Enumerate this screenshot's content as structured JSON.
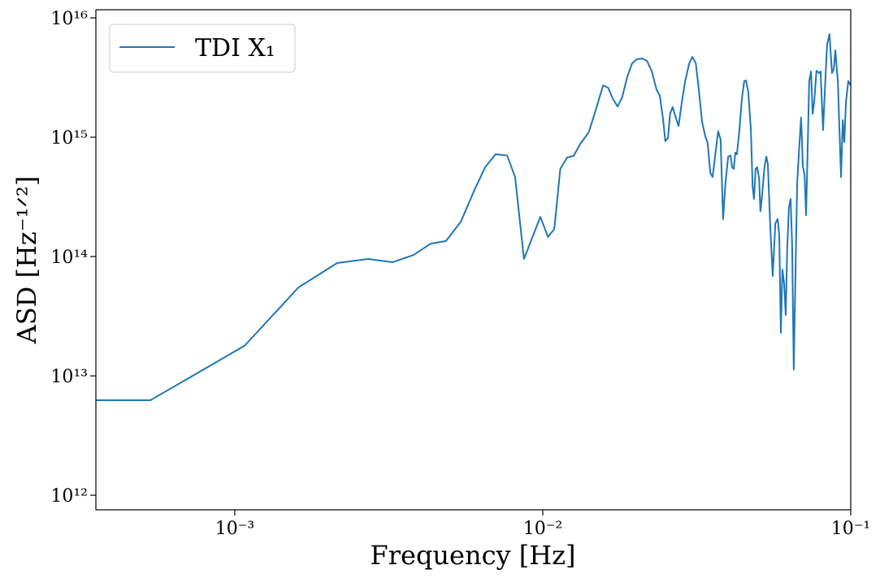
{
  "chart_data": {
    "type": "line",
    "xlabel": "Frequency [Hz]",
    "ylabel": "ASD [Hz⁻¹ᐟ²]",
    "xscale": "log",
    "yscale": "log",
    "legend": "upper left",
    "xlim": [
      0.000354,
      0.1
    ],
    "ylim": [
      755000000000.0,
      1.17e+16
    ],
    "xticks": [
      {
        "value": 0.001,
        "label": "10⁻³"
      },
      {
        "value": 0.01,
        "label": "10⁻²"
      },
      {
        "value": 0.1,
        "label": "10⁻¹"
      }
    ],
    "yticks": [
      {
        "value": 1000000000000.0,
        "label": "10¹²"
      },
      {
        "value": 10000000000000.0,
        "label": "10¹³"
      },
      {
        "value": 100000000000000.0,
        "label": "10¹⁴"
      },
      {
        "value": 1000000000000000.0,
        "label": "10¹⁵"
      },
      {
        "value": 1e+16,
        "label": "10¹⁶"
      }
    ],
    "x": [
      0.000354,
      0.000532,
      0.001076,
      0.00161,
      0.00215,
      0.00271,
      0.00325,
      0.0038,
      0.00432,
      0.00485,
      0.00542,
      0.006,
      0.0065,
      0.00703,
      0.00766,
      0.00813,
      0.00869,
      0.00982,
      0.0104,
      0.0109,
      0.0114,
      0.012,
      0.0126,
      0.0132,
      0.0141,
      0.0149,
      0.0157,
      0.0163,
      0.0169,
      0.0175,
      0.0181,
      0.0188,
      0.0195,
      0.0202,
      0.021,
      0.0218,
      0.0226,
      0.0234,
      0.024,
      0.0246,
      0.025,
      0.0255,
      0.0259,
      0.0264,
      0.0271,
      0.0276,
      0.0283,
      0.029,
      0.0299,
      0.0306,
      0.0314,
      0.0321,
      0.0329,
      0.0337,
      0.0343,
      0.035,
      0.0356,
      0.0362,
      0.0371,
      0.0378,
      0.0385,
      0.0392,
      0.04,
      0.0407,
      0.0412,
      0.0417,
      0.0422,
      0.0427,
      0.0435,
      0.0443,
      0.0451,
      0.0457,
      0.0465,
      0.0474,
      0.048,
      0.0485,
      0.0491,
      0.0497,
      0.0504,
      0.0509,
      0.0515,
      0.0525,
      0.0532,
      0.0538,
      0.0548,
      0.0558,
      0.0569,
      0.0579,
      0.0586,
      0.0593,
      0.06,
      0.0608,
      0.0615,
      0.0622,
      0.063,
      0.0638,
      0.0645,
      0.0653,
      0.0662,
      0.067,
      0.0682,
      0.069,
      0.0699,
      0.0708,
      0.0716,
      0.0725,
      0.0733,
      0.0743,
      0.0752,
      0.0761,
      0.0774,
      0.0789,
      0.0798,
      0.0813,
      0.0828,
      0.0838,
      0.0853,
      0.0869,
      0.0881,
      0.0891,
      0.0908,
      0.093,
      0.0942,
      0.0953,
      0.0965,
      0.0982,
      0.1
    ],
    "series": [
      {
        "name": "TDI X₁",
        "color": "#1f77b4",
        "values": [
          6250000000000.0,
          6250000000000.0,
          17900000000000.0,
          55100000000000.0,
          88300000000000.0,
          95500000000000.0,
          89600000000000.0,
          103000000000000.0,
          128000000000000.0,
          135000000000000.0,
          196000000000000.0,
          361000000000000.0,
          560000000000000.0,
          720000000000000.0,
          704000000000000.0,
          464000000000000.0,
          95500000000000.0,
          215000000000000.0,
          146000000000000.0,
          170000000000000.0,
          543000000000000.0,
          676000000000000.0,
          698000000000000.0,
          869000000000000.0,
          1100000000000000.0,
          1730000000000000.0,
          2720000000000000.0,
          2600000000000000.0,
          2090000000000000.0,
          1810000000000000.0,
          2150000000000000.0,
          3190000000000000.0,
          4160000000000000.0,
          4500000000000000.0,
          4570000000000000.0,
          4360000000000000.0,
          3560000000000000.0,
          2520000000000000.0,
          2220000000000000.0,
          1390000000000000.0,
          925000000000000.0,
          985000000000000.0,
          1570000000000000.0,
          1790000000000000.0,
          1430000000000000.0,
          1240000000000000.0,
          1990000000000000.0,
          2950000000000000.0,
          4160000000000000.0,
          4710000000000000.0,
          4160000000000000.0,
          2520000000000000.0,
          1350000000000000.0,
          1020000000000000.0,
          896000000000000.0,
          502000000000000.0,
          464000000000000.0,
          665000000000000.0,
          1120000000000000.0,
          955000000000000.0,
          206000000000000.0,
          416000000000000.0,
          687000000000000.0,
          704000000000000.0,
          560000000000000.0,
          543000000000000.0,
          743000000000000.0,
          720000000000000.0,
          1150000000000000.0,
          2090000000000000.0,
          2950000000000000.0,
          2990000000000000.0,
          2370000000000000.0,
          1150000000000000.0,
          391000000000000.0,
          304000000000000.0,
          543000000000000.0,
          560000000000000.0,
          450000000000000.0,
          240000000000000.0,
          319000000000000.0,
          569000000000000.0,
          687000000000000.0,
          597000000000000.0,
          176000000000000.0,
          68700000000000.0,
          190000000000000.0,
          206000000000000.0,
          150000000000000.0,
          23000000000000.0,
          77800000000000.0,
          58700000000000.0,
          32400000000000.0,
          119000000000000.0,
          260000000000000.0,
          304000000000000.0,
          128000000000000.0,
          11300000000000.0,
          80400000000000.0,
          416000000000000.0,
          910000000000000.0,
          1460000000000000.0,
          569000000000000.0,
          486000000000000.0,
          222000000000000.0,
          842000000000000.0,
          2950000000000000.0,
          3560000000000000.0,
          1570000000000000.0,
          1990000000000000.0,
          3610000000000000.0,
          3450000000000000.0,
          3560000000000000.0,
          1150000000000000.0,
          3190000000000000.0,
          5970000000000000.0,
          7310000000000000.0,
          3450000000000000.0,
          3730000000000000.0,
          5350000000000000.0,
          2950000000000000.0,
          464000000000000.0,
          1390000000000000.0,
          910000000000000.0,
          1990000000000000.0,
          2950000000000000.0,
          2720000000000000.0
        ]
      }
    ]
  }
}
